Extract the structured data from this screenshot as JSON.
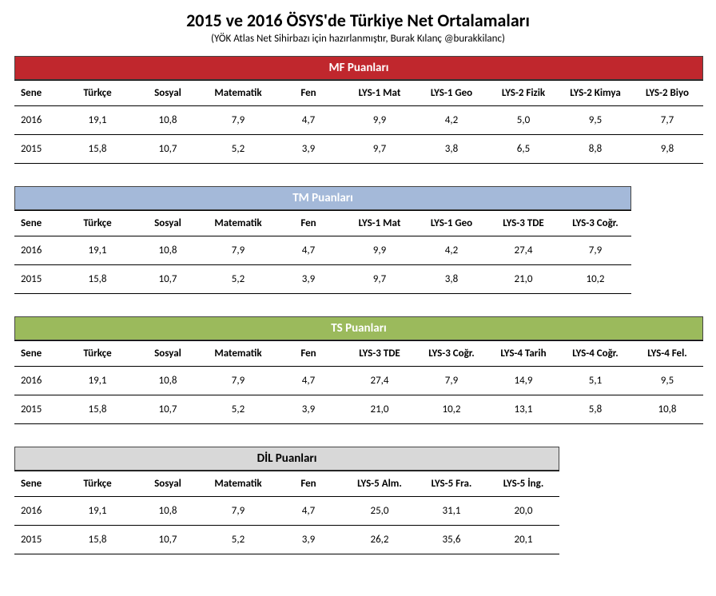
{
  "title": "2015 ve 2016 ÖSYS'de Türkiye Net Ortalamaları",
  "subtitle": "(YÖK Atlas Net Sihirbazı için hazırlanmıştır, Burak Kılanç @burakkilanc)",
  "base_headers": [
    "Sene",
    "Türkçe",
    "Sosyal",
    "Matematik",
    "Fen"
  ],
  "colors": {
    "mf": "#c0272d",
    "tm": "#a4b9d9",
    "ts": "#9bba5c",
    "dil": "#d8d8d8",
    "dil_text": "#000000"
  },
  "sections": [
    {
      "key": "mf",
      "title": "MF Puanları",
      "extra_headers": [
        "LYS-1 Mat",
        "LYS-1 Geo",
        "LYS-2 Fizik",
        "LYS-2 Kimya",
        "LYS-2 Biyo"
      ],
      "rows": [
        {
          "year": "2016",
          "base": [
            "19,1",
            "10,8",
            "7,9",
            "4,7"
          ],
          "extra": [
            "9,9",
            "4,2",
            "5,0",
            "9,5",
            "7,7"
          ]
        },
        {
          "year": "2015",
          "base": [
            "15,8",
            "10,7",
            "5,2",
            "3,9"
          ],
          "extra": [
            "9,7",
            "3,8",
            "6,5",
            "8,8",
            "9,8"
          ]
        }
      ]
    },
    {
      "key": "tm",
      "title": "TM Puanları",
      "extra_headers": [
        "LYS-1 Mat",
        "LYS-1 Geo",
        "LYS-3 TDE",
        "LYS-3 Coğr."
      ],
      "rows": [
        {
          "year": "2016",
          "base": [
            "19,1",
            "10,8",
            "7,9",
            "4,7"
          ],
          "extra": [
            "9,9",
            "4,2",
            "27,4",
            "7,9"
          ]
        },
        {
          "year": "2015",
          "base": [
            "15,8",
            "10,7",
            "5,2",
            "3,9"
          ],
          "extra": [
            "9,7",
            "3,8",
            "21,0",
            "10,2"
          ]
        }
      ]
    },
    {
      "key": "ts",
      "title": "TS Puanları",
      "extra_headers": [
        "LYS-3 TDE",
        "LYS-3 Coğr.",
        "LYS-4 Tarih",
        "LYS-4 Coğr.",
        "LYS-4 Fel."
      ],
      "rows": [
        {
          "year": "2016",
          "base": [
            "19,1",
            "10,8",
            "7,9",
            "4,7"
          ],
          "extra": [
            "27,4",
            "7,9",
            "14,9",
            "5,1",
            "9,5"
          ]
        },
        {
          "year": "2015",
          "base": [
            "15,8",
            "10,7",
            "5,2",
            "3,9"
          ],
          "extra": [
            "21,0",
            "10,2",
            "13,1",
            "5,8",
            "10,8"
          ]
        }
      ]
    },
    {
      "key": "dil",
      "title": "DİL Puanları",
      "extra_headers": [
        "LYS-5 Alm.",
        "LYS-5 Fra.",
        "LYS-5 İng."
      ],
      "rows": [
        {
          "year": "2016",
          "base": [
            "19,1",
            "10,8",
            "7,9",
            "4,7"
          ],
          "extra": [
            "25,0",
            "31,1",
            "20,0"
          ]
        },
        {
          "year": "2015",
          "base": [
            "15,8",
            "10,7",
            "5,2",
            "3,9"
          ],
          "extra": [
            "26,2",
            "35,6",
            "20,1"
          ]
        }
      ]
    }
  ]
}
